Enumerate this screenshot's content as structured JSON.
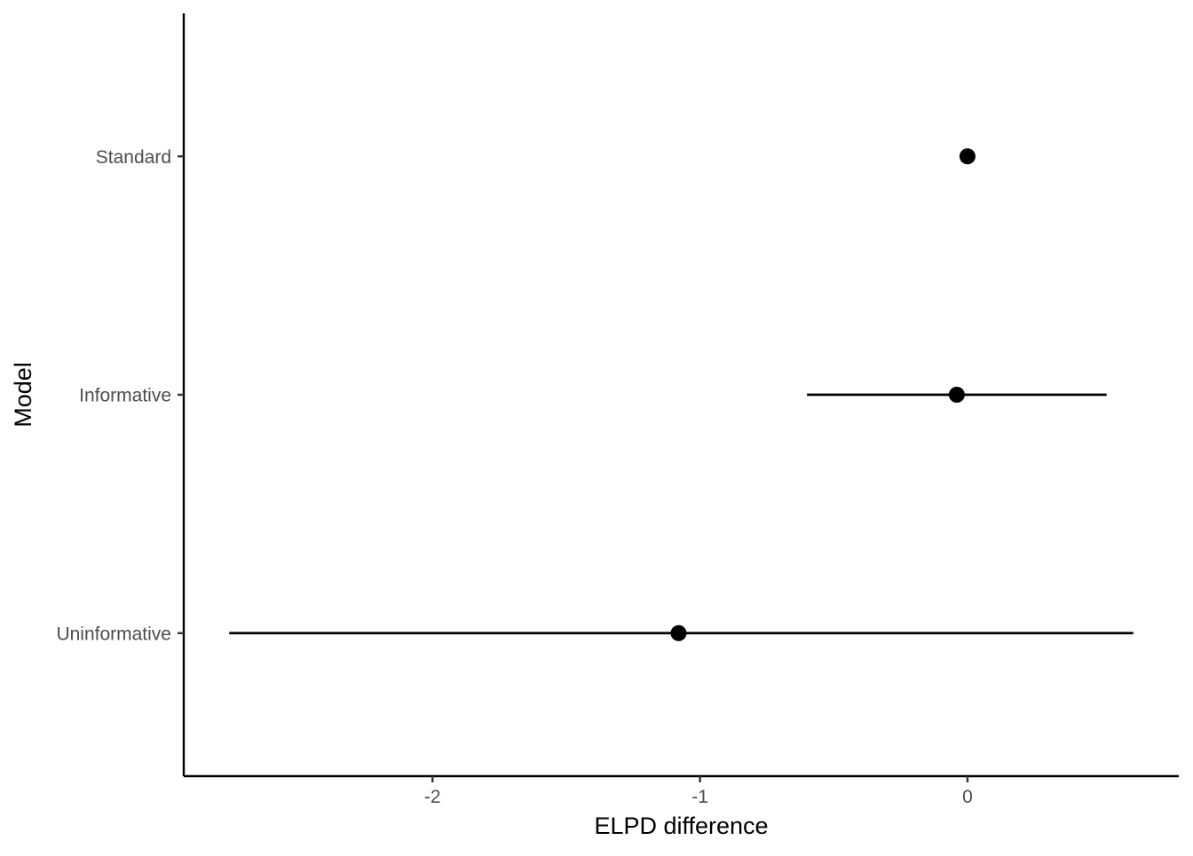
{
  "chart_data": {
    "type": "scatter",
    "subtype": "point-range",
    "title": "",
    "xlabel": "ELPD difference",
    "ylabel": "Model",
    "categories": [
      "Standard",
      "Informative",
      "Uninformative"
    ],
    "series": [
      {
        "points": [
          {
            "model": "Standard",
            "estimate": 0.0,
            "lower": 0.0,
            "upper": 0.0
          },
          {
            "model": "Informative",
            "estimate": -0.04,
            "lower": -0.6,
            "upper": 0.52
          },
          {
            "model": "Uninformative",
            "estimate": -1.08,
            "lower": -2.76,
            "upper": 0.62
          }
        ]
      }
    ],
    "xlim": [
      -2.93,
      0.79
    ],
    "xticks": [
      -2,
      -1,
      0
    ],
    "xtick_labels": [
      "-2",
      "-1",
      "0"
    ],
    "grid": false,
    "legend": "none",
    "colors": {
      "points": "#000000",
      "intervals": "#000000",
      "axis": "#000000",
      "tick_labels": "#4d4d4d"
    }
  }
}
